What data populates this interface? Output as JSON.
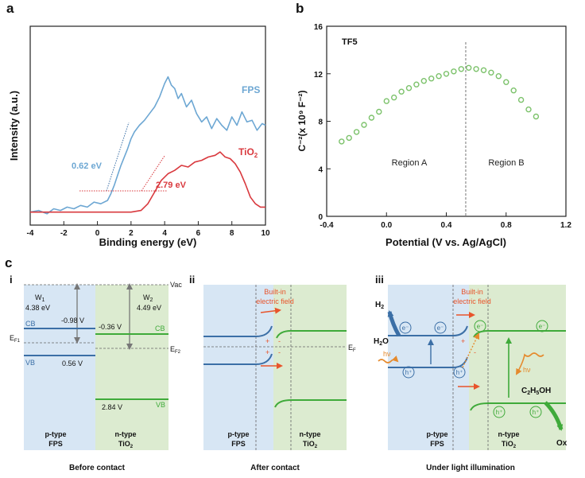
{
  "panel_a": {
    "label": "a",
    "chart_data": {
      "type": "line",
      "xlabel": "Binding energy (eV)",
      "ylabel": "Intensity (a.u.)",
      "xlim": [
        -4,
        10
      ],
      "xticks": [
        "-4",
        "-2",
        "0",
        "2",
        "4",
        "6",
        "8",
        "10"
      ],
      "series": [
        {
          "name": "FPS",
          "color": "#6da7d3",
          "x": [
            -4,
            -3.5,
            -3,
            -2.6,
            -2.2,
            -1.8,
            -1.4,
            -1,
            -0.6,
            -0.2,
            0.2,
            0.6,
            0.8,
            1.0,
            1.2,
            1.4,
            1.6,
            1.8,
            2.0,
            2.2,
            2.5,
            2.8,
            3.1,
            3.4,
            3.7,
            4.0,
            4.2,
            4.4,
            4.6,
            4.8,
            5.0,
            5.3,
            5.6,
            5.9,
            6.2,
            6.5,
            6.8,
            7.1,
            7.4,
            7.7,
            8.0,
            8.3,
            8.6,
            8.9,
            9.2,
            9.5,
            9.8,
            10.0
          ],
          "y": [
            0.03,
            0.04,
            0.02,
            0.05,
            0.04,
            0.06,
            0.05,
            0.07,
            0.06,
            0.09,
            0.08,
            0.1,
            0.14,
            0.19,
            0.25,
            0.31,
            0.36,
            0.41,
            0.47,
            0.51,
            0.55,
            0.58,
            0.62,
            0.66,
            0.72,
            0.8,
            0.84,
            0.79,
            0.77,
            0.71,
            0.74,
            0.66,
            0.7,
            0.62,
            0.57,
            0.6,
            0.53,
            0.59,
            0.55,
            0.52,
            0.6,
            0.55,
            0.63,
            0.57,
            0.58,
            0.52,
            0.56,
            0.55
          ]
        },
        {
          "name": "TiO2",
          "color": "#d9393e",
          "x": [
            -4,
            -3,
            -2,
            -1,
            0,
            1,
            2,
            2.6,
            3.0,
            3.4,
            3.8,
            4.2,
            4.6,
            5.0,
            5.4,
            5.8,
            6.2,
            6.6,
            7.0,
            7.3,
            7.6,
            7.9,
            8.2,
            8.5,
            8.8,
            9.1,
            9.4,
            9.7,
            10.0
          ],
          "y": [
            0.03,
            0.03,
            0.03,
            0.03,
            0.03,
            0.03,
            0.03,
            0.04,
            0.08,
            0.15,
            0.22,
            0.26,
            0.28,
            0.31,
            0.3,
            0.33,
            0.34,
            0.36,
            0.37,
            0.39,
            0.36,
            0.35,
            0.32,
            0.27,
            0.2,
            0.12,
            0.08,
            0.06,
            0.06
          ]
        }
      ],
      "annotations": [
        "0.62 eV",
        "2.79 eV"
      ],
      "legend": [
        "FPS",
        "TiO2"
      ]
    }
  },
  "panel_b": {
    "label": "b",
    "chart_data": {
      "type": "scatter",
      "title": "TF5",
      "xlabel": "Potential (V vs. Ag/AgCl)",
      "ylabel": "C⁻²(x 10⁹ F⁻²)",
      "xlim": [
        -0.4,
        1.2
      ],
      "ylim": [
        0,
        16
      ],
      "xticks": [
        "-0.4",
        "0.0",
        "0.4",
        "0.8",
        "1.2"
      ],
      "yticks": [
        "0",
        "4",
        "8",
        "12",
        "16"
      ],
      "color": "#7cc26b",
      "x": [
        -0.3,
        -0.25,
        -0.2,
        -0.15,
        -0.1,
        -0.05,
        0.0,
        0.05,
        0.1,
        0.15,
        0.2,
        0.25,
        0.3,
        0.35,
        0.4,
        0.45,
        0.5,
        0.55,
        0.6,
        0.65,
        0.7,
        0.75,
        0.8,
        0.85,
        0.9,
        0.95,
        1.0
      ],
      "y": [
        6.3,
        6.6,
        7.1,
        7.7,
        8.3,
        8.8,
        9.7,
        10.0,
        10.5,
        10.8,
        11.1,
        11.4,
        11.6,
        11.8,
        12.0,
        12.2,
        12.4,
        12.5,
        12.4,
        12.3,
        12.1,
        11.8,
        11.3,
        10.6,
        9.8,
        9.0,
        8.4
      ],
      "divider_x": 0.53,
      "regions": [
        "Region A",
        "Region B"
      ]
    }
  },
  "panel_c": {
    "label": "c",
    "i": {
      "label": "i",
      "vac": "Vac",
      "w1_name": "W",
      "w1_sub": "1",
      "w1_value": "4.38 eV",
      "w2_name": "W",
      "w2_sub": "2",
      "w2_value": "4.49 eV",
      "fps_cb_v": "-0.98 V",
      "fps_vb_v": "0.56 V",
      "tio2_cb_v": "-0.36 V",
      "tio2_vb_v": "2.84 V",
      "cb": "CB",
      "vb": "VB",
      "ef1": "E",
      "ef1_sub": "F1",
      "ef2": "E",
      "ef2_sub": "F2",
      "left_type": "p-type",
      "left_name": "FPS",
      "right_type": "n-type",
      "right_name": "TiO",
      "right_sub": "2",
      "caption": "Before contact"
    },
    "ii": {
      "label": "ii",
      "field_line1": "Built-in",
      "field_line2": "electric field",
      "ef": "E",
      "ef_sub": "F",
      "plus": "+",
      "minus": "-",
      "left_type": "p-type",
      "left_name": "FPS",
      "right_type": "n-type",
      "right_name": "TiO",
      "right_sub": "2",
      "caption": "After contact"
    },
    "iii": {
      "label": "iii",
      "field_line1": "Built-in",
      "field_line2": "electric field",
      "h2": "H",
      "h2_sub": "2",
      "h2o_a": "H",
      "h2o_sub": "2",
      "h2o_b": "O",
      "hv": "hν",
      "electron": "e⁻",
      "hole": "h⁺",
      "ethanol_a": "C",
      "ethanol_s1": "2",
      "ethanol_b": "H",
      "ethanol_s2": "5",
      "ethanol_c": "OH",
      "ox": "Ox",
      "plus": "+",
      "minus": "-",
      "left_type": "p-type",
      "left_name": "FPS",
      "right_type": "n-type",
      "right_name": "TiO",
      "right_sub": "2",
      "caption": "Under light illumination"
    }
  }
}
